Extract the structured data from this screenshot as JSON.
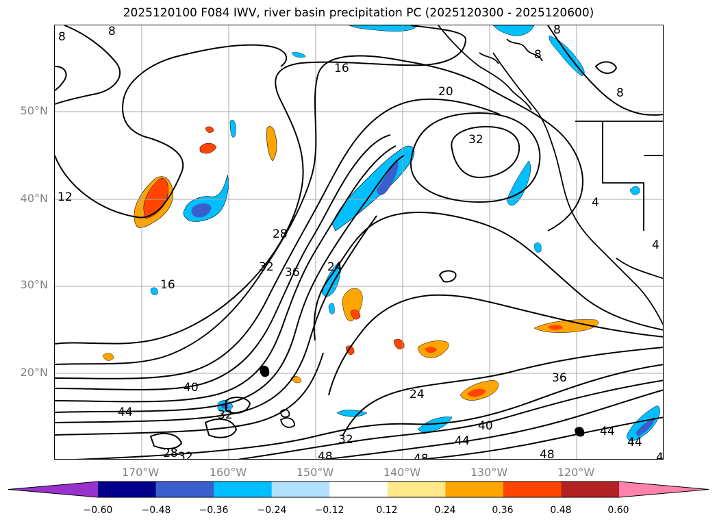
{
  "title": "2025120100 F084 IWV, river basin precipitation PC (2025120300 - 2025120600)",
  "lat_labels": [
    "50°N",
    "40°N",
    "30°N",
    "20°N"
  ],
  "lat_values": [
    50,
    40,
    30,
    20
  ],
  "lon_labels": [
    "170°W",
    "160°W",
    "150°W",
    "140°W",
    "130°W",
    "120°W"
  ],
  "lon_values": [
    -170,
    -160,
    -150,
    -140,
    -130,
    -120
  ],
  "extent": {
    "lon_min": -180,
    "lon_max": -110,
    "lat_min": 10,
    "lat_max": 60
  },
  "contour_labels": [
    "8",
    "8",
    "16",
    "20",
    "32",
    "12",
    "28",
    "32",
    "36",
    "24",
    "16",
    "40",
    "44",
    "32",
    "28",
    "32",
    "48",
    "24",
    "32",
    "48",
    "40",
    "44",
    "48",
    "36",
    "44",
    "44",
    "4",
    "8",
    "8",
    "8",
    "4",
    "4"
  ],
  "colorbar": {
    "ticks": [
      "−0.60",
      "−0.48",
      "−0.36",
      "−0.24",
      "−0.12",
      "0.12",
      "0.24",
      "0.36",
      "0.48",
      "0.60"
    ],
    "colors": [
      "#9932cc",
      "#00008b",
      "#3a5fcd",
      "#00bfff",
      "#b0e2ff",
      "#ffffff",
      "#ffe98a",
      "#ffa500",
      "#ff4500",
      "#b22222",
      "#ff82ab"
    ]
  }
}
